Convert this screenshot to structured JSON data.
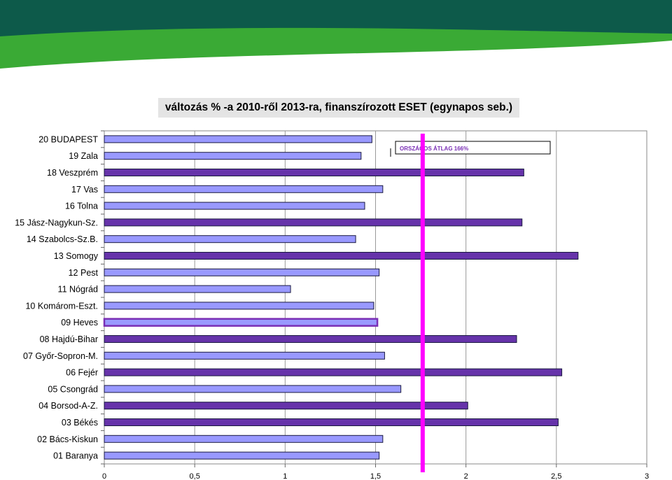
{
  "header": {
    "title": "változás % -a 2010-ről 2013-ra, finanszírozott ESET (egynapos seb.)"
  },
  "chart_data": {
    "type": "bar",
    "orientation": "horizontal",
    "title": "változás % -a 2010-ről 2013-ra, finanszírozott ESET (egynapos seb.)",
    "categories": [
      "01 Baranya",
      "02 Bács-Kiskun",
      "03 Békés",
      "04 Borsod-A-Z.",
      "05 Csongrád",
      "06 Fejér",
      "07 Győr-Sopron-M.",
      "08 Hajdú-Bihar",
      "09 Heves",
      "10 Komárom-Eszt.",
      "11 Nógrád",
      "12 Pest",
      "13 Somogy",
      "14 Szabolcs-Sz.B.",
      "15 Jász-Nagykun-Sz.",
      "16 Tolna",
      "17 Vas",
      "18 Veszprém",
      "19 Zala",
      "20 BUDAPEST"
    ],
    "values": [
      1.52,
      1.54,
      2.51,
      2.01,
      1.64,
      2.53,
      1.55,
      2.28,
      1.51,
      1.49,
      1.03,
      1.52,
      2.62,
      1.39,
      2.31,
      1.44,
      1.54,
      2.32,
      1.42,
      1.48
    ],
    "x_ticks": [
      "0",
      "0,5",
      "1",
      "1,5",
      "2",
      "2,5",
      "3"
    ],
    "xlim": [
      0,
      3
    ],
    "reference_line": {
      "value": 1.66,
      "label": "ORSZÁGOS ÁTLAG 166%",
      "color": "#ff00ff"
    },
    "highlighted": [
      "03 Békés",
      "04 Borsod-A-Z.",
      "06 Fejér",
      "08 Hajdú-Bihar",
      "13 Somogy",
      "15 Jász-Nagykun-Sz.",
      "18 Veszprém"
    ],
    "outlined": [
      "09 Heves"
    ],
    "colors": {
      "bar": "#9999ff",
      "bar_highlight": "#6633aa",
      "bar_border": "#1a1a40",
      "outline": "#7a2fb5"
    },
    "grid": true
  },
  "colors": {
    "banner_dark": "#0d5a4a",
    "banner_green": "#3aaa35"
  }
}
